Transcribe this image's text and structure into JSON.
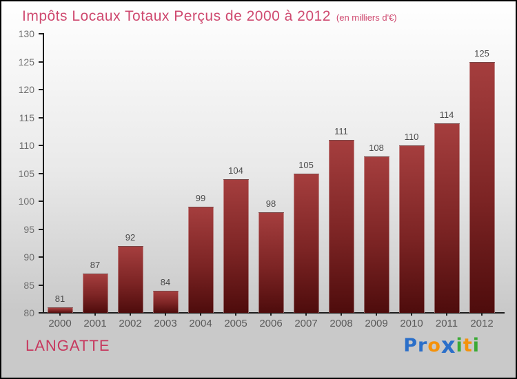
{
  "title": {
    "text": "Impôts Locaux Totaux Perçus de 2000 à 2012",
    "subtitle": "(en milliers d'€)"
  },
  "footer": {
    "commune": "LANGATTE",
    "logo_name": "Proxiti",
    "logo_letters": [
      {
        "char": "P",
        "color": "#2b6fc9",
        "big": false
      },
      {
        "char": "r",
        "color": "#2b6fc9",
        "big": false
      },
      {
        "char": "o",
        "color": "#f5920b",
        "big": false
      },
      {
        "char": "x",
        "color": "#2b6fc9",
        "big": true
      },
      {
        "char": "i",
        "color": "#3aaa35",
        "big": false
      },
      {
        "char": "t",
        "color": "#f5920b",
        "big": false
      },
      {
        "char": "i",
        "color": "#3aaa35",
        "big": false
      }
    ]
  },
  "chart_data": {
    "type": "bar",
    "title": "Impôts Locaux Totaux Perçus de 2000 à 2012",
    "subtitle": "(en milliers d'€)",
    "categories": [
      "2000",
      "2001",
      "2002",
      "2003",
      "2004",
      "2005",
      "2006",
      "2007",
      "2008",
      "2009",
      "2010",
      "2011",
      "2012"
    ],
    "values": [
      81,
      87,
      92,
      84,
      99,
      104,
      98,
      105,
      111,
      108,
      110,
      114,
      125
    ],
    "xlabel": "",
    "ylabel": "",
    "ylim": [
      80,
      130
    ],
    "yticks": [
      80,
      85,
      90,
      95,
      100,
      105,
      110,
      115,
      120,
      125,
      130
    ],
    "grid": false,
    "legend": null,
    "bar_color_top": "#a53e3e",
    "bar_color_bottom": "#4e0c0c"
  },
  "colors": {
    "title-pink": "#cf4a70",
    "commune-pink": "#c7395f",
    "axis-color": "#1c1c1c",
    "tick-label": "#6e6e6e",
    "xlabel-color": "#5a5a5a",
    "value-label": "#4a4a4a",
    "bar-top": "#a53e3e",
    "bar-bottom": "#4e0c0c",
    "bg-top": "#ffffff",
    "bg-bottom": "#c9c9c9"
  }
}
